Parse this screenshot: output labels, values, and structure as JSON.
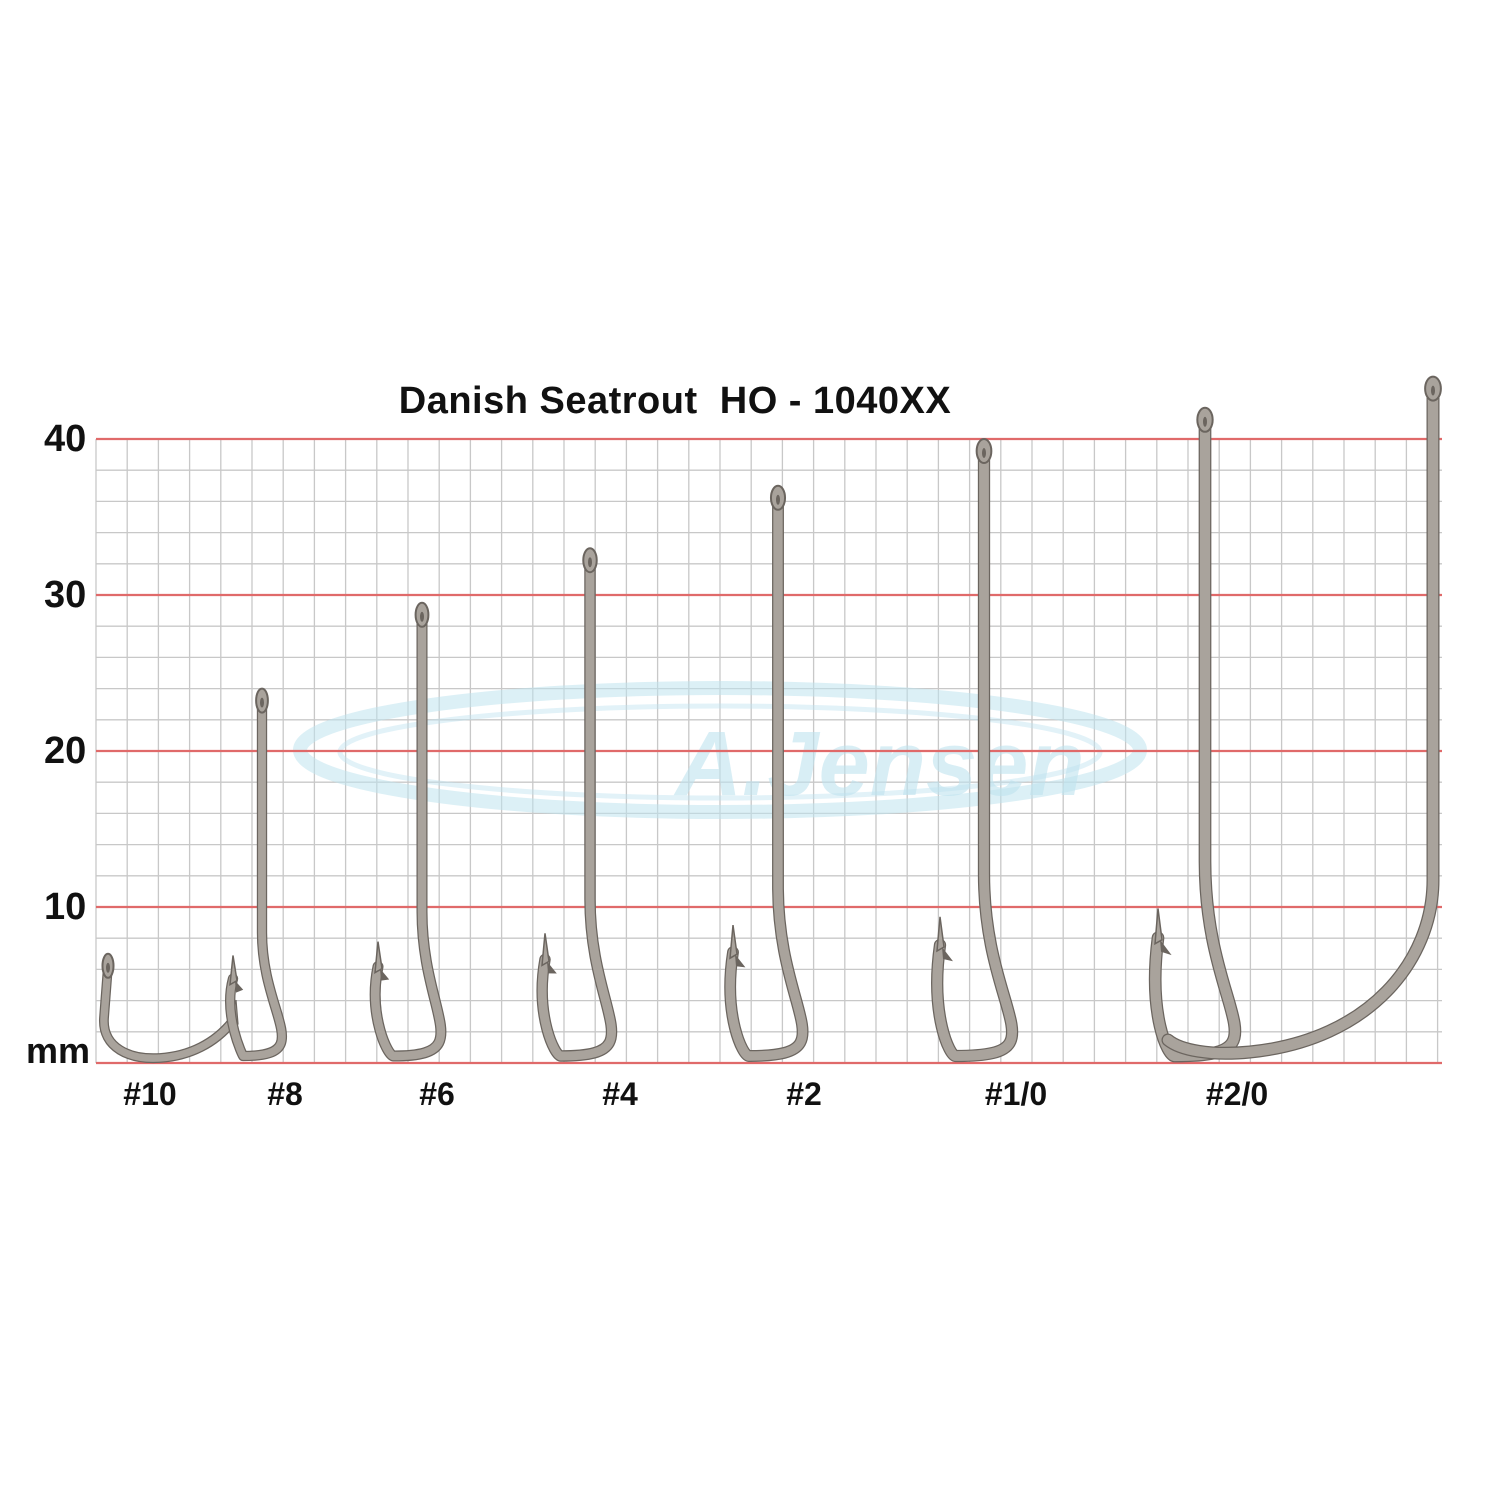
{
  "title": "Danish Seatrout  HO - 1040XX",
  "y_unit": "mm",
  "y_ticks": [
    10,
    20,
    30,
    40
  ],
  "watermark": "A.Jensen",
  "colors": {
    "background": "#ffffff",
    "grid_minor": "#c8c8c8",
    "grid_major": "#e06a6a",
    "hook_metal": "#a9a39c",
    "hook_dark": "#6b655f",
    "watermark": "#bfe3ef",
    "text": "#111111"
  },
  "hooks": [
    {
      "size": "#10",
      "length_mm": 7
    },
    {
      "size": "#8",
      "length_mm": 24
    },
    {
      "size": "#6",
      "length_mm": 29.5
    },
    {
      "size": "#4",
      "length_mm": 33
    },
    {
      "size": "#2",
      "length_mm": 37
    },
    {
      "size": "#1/0",
      "length_mm": 40
    },
    {
      "size": "#2/0",
      "length_mm": 42
    },
    {
      "size": "",
      "length_mm": 44
    }
  ]
}
